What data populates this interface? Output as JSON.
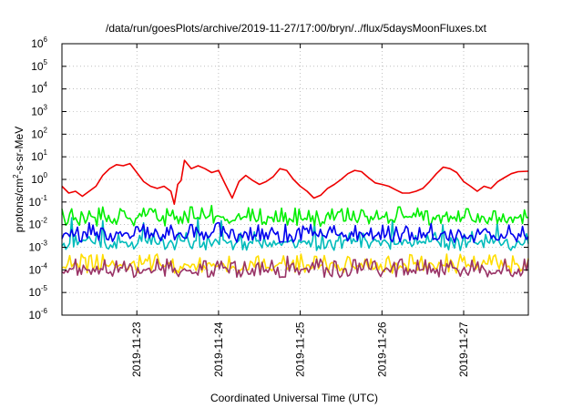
{
  "chart_data": {
    "type": "line",
    "title": "/data/run/goesPlots/archive/2019-11-27/17:00/bryn/../flux/5daysMoonFluxes.txt",
    "xlabel": "Coordinated Universal Time (UTC)",
    "ylabel": {
      "prefix": "protons/cm",
      "sup": "2",
      "suffix": "-s-sr-MeV"
    },
    "y_scale": "log",
    "ylim": [
      1e-06,
      1000000.0
    ],
    "y_ticks": [
      {
        "base": "10",
        "exp": "-6",
        "value": 1e-06
      },
      {
        "base": "10",
        "exp": "-5",
        "value": 1e-05
      },
      {
        "base": "10",
        "exp": "-4",
        "value": 0.0001
      },
      {
        "base": "10",
        "exp": "-3",
        "value": 0.001
      },
      {
        "base": "10",
        "exp": "-2",
        "value": 0.01
      },
      {
        "base": "10",
        "exp": "-1",
        "value": 0.1
      },
      {
        "base": "10",
        "exp": "0",
        "value": 1
      },
      {
        "base": "10",
        "exp": "1",
        "value": 10
      },
      {
        "base": "10",
        "exp": "2",
        "value": 100
      },
      {
        "base": "10",
        "exp": "3",
        "value": 1000
      },
      {
        "base": "10",
        "exp": "4",
        "value": 10000
      },
      {
        "base": "10",
        "exp": "5",
        "value": 100000
      },
      {
        "base": "10",
        "exp": "6",
        "value": 1000000
      }
    ],
    "xlim": [
      "2019-11-22T02:00",
      "2019-11-27T19:00"
    ],
    "x_ticks": [
      {
        "label": "2019-11-23",
        "x": "2019-11-23T00:00"
      },
      {
        "label": "2019-11-24",
        "x": "2019-11-24T00:00"
      },
      {
        "label": "2019-11-25",
        "x": "2019-11-25T00:00"
      },
      {
        "label": "2019-11-26",
        "x": "2019-11-26T00:00"
      },
      {
        "label": "2019-11-27",
        "x": "2019-11-27T00:00"
      }
    ],
    "grid": true,
    "legend": "none",
    "series": [
      {
        "color": "#ee0000",
        "points": [
          [
            "2019-11-22T02:00",
            0.5
          ],
          [
            "2019-11-22T04:00",
            0.25
          ],
          [
            "2019-11-22T06:00",
            0.3
          ],
          [
            "2019-11-22T08:00",
            0.18
          ],
          [
            "2019-11-22T10:00",
            0.3
          ],
          [
            "2019-11-22T12:00",
            0.5
          ],
          [
            "2019-11-22T14:00",
            1.5
          ],
          [
            "2019-11-22T16:00",
            3
          ],
          [
            "2019-11-22T18:00",
            4.5
          ],
          [
            "2019-11-22T20:00",
            4
          ],
          [
            "2019-11-22T22:00",
            5
          ],
          [
            "2019-11-23T00:00",
            2
          ],
          [
            "2019-11-23T02:00",
            0.8
          ],
          [
            "2019-11-23T04:00",
            0.5
          ],
          [
            "2019-11-23T06:00",
            0.4
          ],
          [
            "2019-11-23T08:00",
            0.5
          ],
          [
            "2019-11-23T10:00",
            0.3
          ],
          [
            "2019-11-23T11:00",
            0.08
          ],
          [
            "2019-11-23T12:00",
            0.6
          ],
          [
            "2019-11-23T13:00",
            0.9
          ],
          [
            "2019-11-23T14:00",
            7
          ],
          [
            "2019-11-23T16:00",
            3
          ],
          [
            "2019-11-23T18:00",
            4
          ],
          [
            "2019-11-23T20:00",
            3
          ],
          [
            "2019-11-23T22:00",
            2
          ],
          [
            "2019-11-24T00:00",
            2.5
          ],
          [
            "2019-11-24T02:00",
            0.6
          ],
          [
            "2019-11-24T04:00",
            0.15
          ],
          [
            "2019-11-24T06:00",
            0.8
          ],
          [
            "2019-11-24T08:00",
            1.5
          ],
          [
            "2019-11-24T10:00",
            0.9
          ],
          [
            "2019-11-24T12:00",
            0.6
          ],
          [
            "2019-11-24T14:00",
            0.8
          ],
          [
            "2019-11-24T16:00",
            1.3
          ],
          [
            "2019-11-24T18:00",
            3
          ],
          [
            "2019-11-24T20:00",
            2.5
          ],
          [
            "2019-11-24T22:00",
            1
          ],
          [
            "2019-11-25T00:00",
            0.5
          ],
          [
            "2019-11-25T02:00",
            0.3
          ],
          [
            "2019-11-25T04:00",
            0.15
          ],
          [
            "2019-11-25T06:00",
            0.2
          ],
          [
            "2019-11-25T08:00",
            0.4
          ],
          [
            "2019-11-25T10:00",
            0.6
          ],
          [
            "2019-11-25T12:00",
            1
          ],
          [
            "2019-11-25T14:00",
            1.8
          ],
          [
            "2019-11-25T16:00",
            2.5
          ],
          [
            "2019-11-25T18:00",
            2.2
          ],
          [
            "2019-11-25T20:00",
            1.2
          ],
          [
            "2019-11-25T22:00",
            0.7
          ],
          [
            "2019-11-26T00:00",
            0.6
          ],
          [
            "2019-11-26T02:00",
            0.5
          ],
          [
            "2019-11-26T04:00",
            0.35
          ],
          [
            "2019-11-26T06:00",
            0.25
          ],
          [
            "2019-11-26T08:00",
            0.25
          ],
          [
            "2019-11-26T10:00",
            0.3
          ],
          [
            "2019-11-26T12:00",
            0.4
          ],
          [
            "2019-11-26T14:00",
            0.8
          ],
          [
            "2019-11-26T16:00",
            1.8
          ],
          [
            "2019-11-26T18:00",
            3.5
          ],
          [
            "2019-11-26T20:00",
            3
          ],
          [
            "2019-11-26T22:00",
            2
          ],
          [
            "2019-11-27T00:00",
            0.8
          ],
          [
            "2019-11-27T02:00",
            0.5
          ],
          [
            "2019-11-27T04:00",
            0.3
          ],
          [
            "2019-11-27T06:00",
            0.5
          ],
          [
            "2019-11-27T08:00",
            0.4
          ],
          [
            "2019-11-27T10:00",
            0.8
          ],
          [
            "2019-11-27T12:00",
            1.2
          ],
          [
            "2019-11-27T14:00",
            1.8
          ],
          [
            "2019-11-27T16:00",
            2.2
          ],
          [
            "2019-11-27T19:00",
            2.3
          ]
        ]
      },
      {
        "color": "#00ee00",
        "base": 0.015,
        "points": [
          [
            "2019-11-22T05:00",
            0.05
          ],
          [
            "2019-11-22T10:00",
            0.04
          ],
          [
            "2019-11-22T14:00",
            0.06
          ],
          [
            "2019-11-22T20:00",
            0.04
          ],
          [
            "2019-11-23T04:00",
            0.05
          ],
          [
            "2019-11-23T16:00",
            0.06
          ],
          [
            "2019-11-23T22:00",
            0.07
          ],
          [
            "2019-11-24T12:00",
            0.05
          ],
          [
            "2019-11-24T17:00",
            0.04
          ],
          [
            "2019-11-25T05:00",
            0.04
          ],
          [
            "2019-11-25T12:00",
            0.05
          ],
          [
            "2019-11-26T05:00",
            0.06
          ],
          [
            "2019-11-26T13:00",
            0.04
          ],
          [
            "2019-11-27T01:00",
            0.05
          ],
          [
            "2019-11-27T09:00",
            0.04
          ]
        ]
      },
      {
        "color": "#0000ee",
        "base": 0.003,
        "points": [
          [
            "2019-11-22T05:00",
            0.006
          ],
          [
            "2019-11-22T10:00",
            0.012
          ],
          [
            "2019-11-22T14:00",
            0.007
          ],
          [
            "2019-11-23T00:00",
            0.008
          ],
          [
            "2019-11-23T16:00",
            0.01
          ],
          [
            "2019-11-24T00:00",
            0.012
          ],
          [
            "2019-11-24T04:00",
            0.006
          ],
          [
            "2019-11-25T02:00",
            0.007
          ],
          [
            "2019-11-25T10:00",
            0.009
          ],
          [
            "2019-11-26T04:00",
            0.008
          ],
          [
            "2019-11-27T06:00",
            0.006
          ]
        ]
      },
      {
        "color": "#00bbbb",
        "base": 0.0013,
        "points": [
          [
            "2019-11-22T05:00",
            0.02
          ],
          [
            "2019-11-22T14:00",
            0.015
          ],
          [
            "2019-11-23T02:00",
            0.012
          ],
          [
            "2019-11-23T18:00",
            0.02
          ],
          [
            "2019-11-24T01:00",
            0.015
          ],
          [
            "2019-11-25T04:00",
            0.012
          ],
          [
            "2019-11-26T03:00",
            0.015
          ],
          [
            "2019-11-26T18:00",
            0.01
          ],
          [
            "2019-11-27T10:00",
            0.012
          ]
        ]
      },
      {
        "color": "#ffdd00",
        "base": 0.00013,
        "points": [
          [
            "2019-11-22T10:00",
            0.0004
          ],
          [
            "2019-11-23T06:00",
            0.0005
          ],
          [
            "2019-11-24T03:00",
            0.0004
          ],
          [
            "2019-11-25T00:00",
            0.0005
          ],
          [
            "2019-11-26T02:00",
            0.0004
          ],
          [
            "2019-11-27T03:00",
            0.0004
          ]
        ]
      },
      {
        "color": "#993366",
        "base": 8e-05,
        "points": [
          [
            "2019-11-22T06:00",
            0.0003
          ],
          [
            "2019-11-22T18:00",
            0.00025
          ],
          [
            "2019-11-23T06:00",
            0.0003
          ],
          [
            "2019-11-23T20:00",
            0.00025
          ],
          [
            "2019-11-24T04:00",
            0.0002
          ],
          [
            "2019-11-24T20:00",
            0.0004
          ],
          [
            "2019-11-25T06:00",
            0.0003
          ],
          [
            "2019-11-25T22:00",
            0.00025
          ],
          [
            "2019-11-26T06:00",
            0.0003
          ],
          [
            "2019-11-26T20:00",
            0.00025
          ],
          [
            "2019-11-27T12:00",
            0.0003
          ],
          [
            "2019-11-27T18:00",
            0.0003
          ]
        ]
      }
    ]
  }
}
